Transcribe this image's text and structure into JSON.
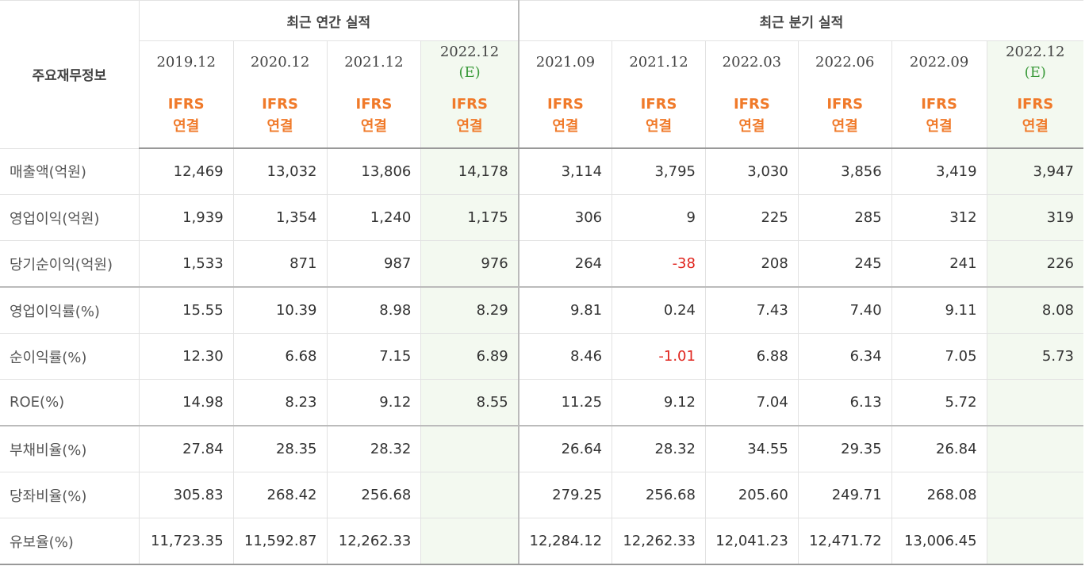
{
  "table": {
    "label_header": "주요재무정보",
    "group_annual": "최근 연간 실적",
    "group_quarter": "최근 분기 실적",
    "periods": [
      "2019.12",
      "2020.12",
      "2021.12",
      "2022.12",
      "2021.09",
      "2021.12",
      "2022.03",
      "2022.06",
      "2022.09",
      "2022.12"
    ],
    "estimate_mark": "(E)",
    "ifrs_line1": "IFRS",
    "ifrs_line2": "연결",
    "rows": [
      {
        "label": "매출액(억원)",
        "values": [
          "12,469",
          "13,032",
          "13,806",
          "14,178",
          "3,114",
          "3,795",
          "3,030",
          "3,856",
          "3,419",
          "3,947"
        ]
      },
      {
        "label": "영업이익(억원)",
        "values": [
          "1,939",
          "1,354",
          "1,240",
          "1,175",
          "306",
          "9",
          "225",
          "285",
          "312",
          "319"
        ]
      },
      {
        "label": "당기순이익(억원)",
        "values": [
          "1,533",
          "871",
          "987",
          "976",
          "264",
          "-38",
          "208",
          "245",
          "241",
          "226"
        ]
      },
      {
        "label": "영업이익률(%)",
        "values": [
          "15.55",
          "10.39",
          "8.98",
          "8.29",
          "9.81",
          "0.24",
          "7.43",
          "7.40",
          "9.11",
          "8.08"
        ]
      },
      {
        "label": "순이익률(%)",
        "values": [
          "12.30",
          "6.68",
          "7.15",
          "6.89",
          "8.46",
          "-1.01",
          "6.88",
          "6.34",
          "7.05",
          "5.73"
        ]
      },
      {
        "label": "ROE(%)",
        "values": [
          "14.98",
          "8.23",
          "9.12",
          "8.55",
          "11.25",
          "9.12",
          "7.04",
          "6.13",
          "5.72",
          ""
        ]
      },
      {
        "label": "부채비율(%)",
        "values": [
          "27.84",
          "28.35",
          "28.32",
          "",
          "26.64",
          "28.32",
          "34.55",
          "29.35",
          "26.84",
          ""
        ]
      },
      {
        "label": "당좌비율(%)",
        "values": [
          "305.83",
          "268.42",
          "256.68",
          "",
          "279.25",
          "256.68",
          "205.60",
          "249.71",
          "268.08",
          ""
        ]
      },
      {
        "label": "유보율(%)",
        "values": [
          "11,723.35",
          "11,592.87",
          "12,262.33",
          "",
          "12,284.12",
          "12,262.33",
          "12,041.23",
          "12,471.72",
          "13,006.45",
          ""
        ]
      }
    ],
    "colors": {
      "ifrs": "#f07a2a",
      "estimate_bg": "#f3f9f0",
      "negative": "#e0251e",
      "estimate_mark": "#3a9a3a"
    }
  }
}
